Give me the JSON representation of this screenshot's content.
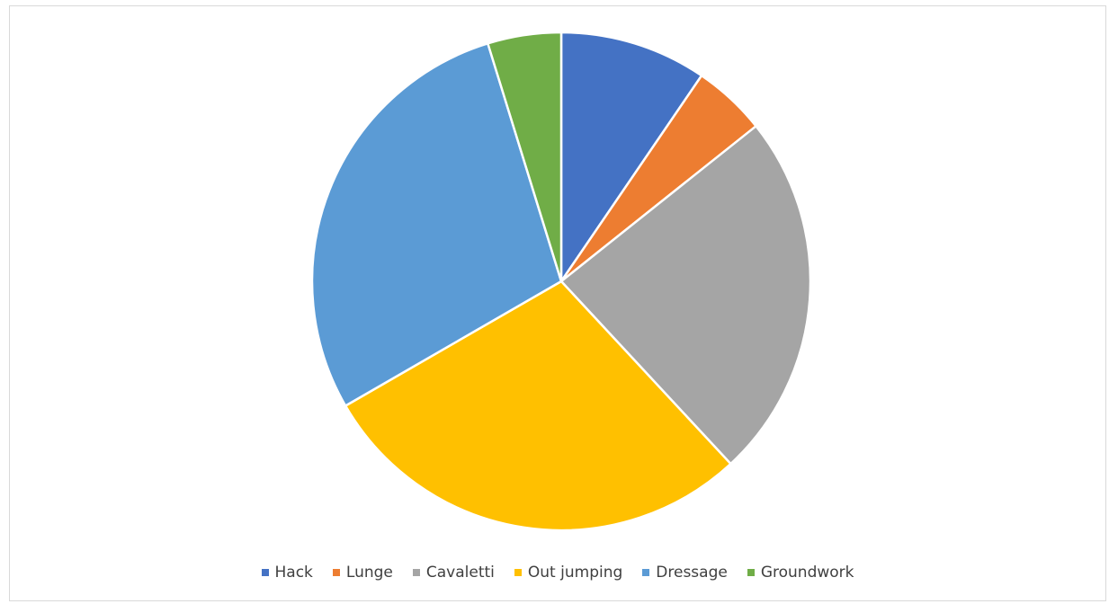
{
  "chart_data": {
    "type": "pie",
    "title": "",
    "categories": [
      "Hack",
      "Lunge",
      "Cavaletti",
      "Out jumping",
      "Dressage",
      "Groundwork"
    ],
    "values": [
      10,
      5,
      25,
      30,
      30,
      5
    ],
    "colors": [
      "#4472C4",
      "#ED7D31",
      "#A5A5A5",
      "#FFC000",
      "#5B9BD5",
      "#70AD47"
    ],
    "start_angle_deg": 0,
    "direction": "clockwise",
    "legend_position": "bottom"
  }
}
